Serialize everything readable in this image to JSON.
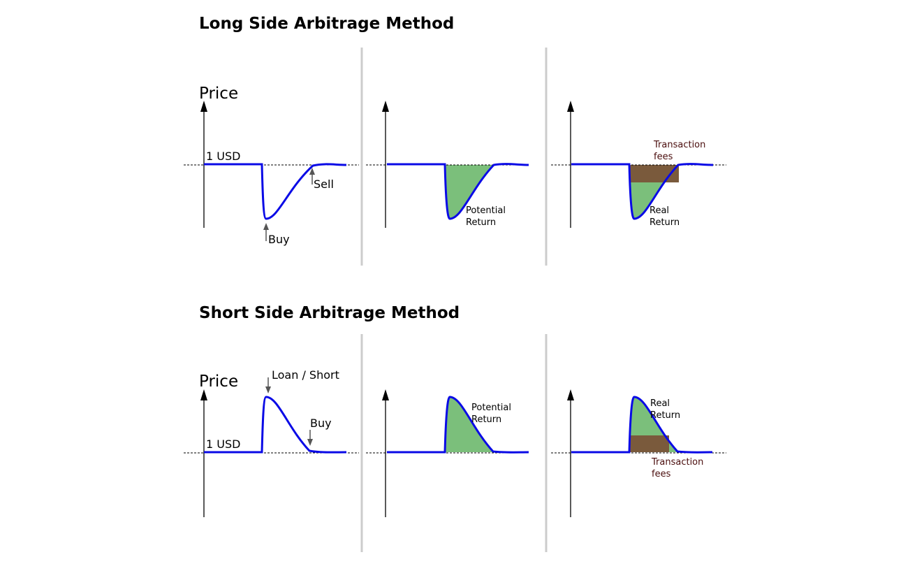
{
  "colors": {
    "curve": "#0a0ae6",
    "return_fill": "#7bbf7b",
    "fee_fill": "#7a5a3c",
    "fee_text": "#4a0d0d",
    "divider": "#cccccc",
    "baseline": "#000000"
  },
  "long": {
    "title": "Long Side Arbitrage Method",
    "axis_label": "Price",
    "baseline_label": "1 USD",
    "buy_label": "Buy",
    "sell_label": "Sell",
    "potential_return_1": "Potential",
    "potential_return_2": "Return",
    "real_return_1": "Real",
    "real_return_2": "Return",
    "fees_1": "Transaction",
    "fees_2": "fees"
  },
  "short": {
    "title": "Short Side Arbitrage Method",
    "axis_label": "Price",
    "baseline_label": "1 USD",
    "loan_label": "Loan / Short",
    "buy_label": "Buy",
    "potential_return_1": "Potential",
    "potential_return_2": "Return",
    "real_return_1": "Real",
    "real_return_2": "Return",
    "fees_1": "Transaction",
    "fees_2": "fees"
  }
}
